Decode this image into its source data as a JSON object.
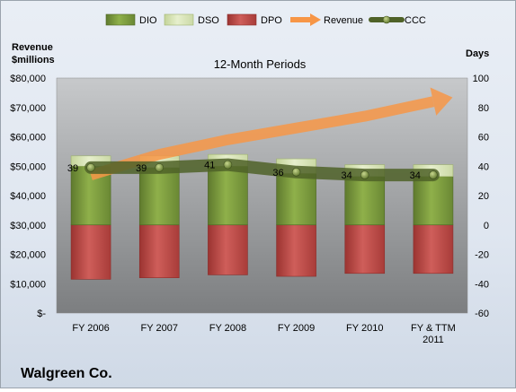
{
  "chart_data": {
    "type": "bar",
    "title": "12-Month Periods",
    "company": "Walgreen Co.",
    "y_left_label": [
      "Revenue",
      "$millions"
    ],
    "y_right_label": "Days",
    "categories": [
      [
        "FY 2006"
      ],
      [
        "FY 2007"
      ],
      [
        "FY 2008"
      ],
      [
        "FY 2009"
      ],
      [
        "FY 2010"
      ],
      [
        "FY & TTM",
        "2011"
      ]
    ],
    "left_axis": {
      "min": 0,
      "max": 80000,
      "step": 10000,
      "ticks": [
        "$-",
        "$10,000",
        "$20,000",
        "$30,000",
        "$40,000",
        "$50,000",
        "$60,000",
        "$70,000",
        "$80,000"
      ]
    },
    "right_axis": {
      "min": -60,
      "max": 100,
      "step": 20,
      "ticks": [
        "-60",
        "-40",
        "-20",
        "0",
        "20",
        "40",
        "60",
        "80",
        "100"
      ]
    },
    "series": [
      {
        "name": "DIO",
        "axis": "right",
        "color": "#77933c",
        "values": [
          40,
          39,
          40,
          35,
          33,
          33
        ]
      },
      {
        "name": "DSO",
        "axis": "right",
        "color": "#d7e4bd",
        "values": [
          7,
          8,
          8,
          10,
          8,
          8
        ]
      },
      {
        "name": "DPO",
        "axis": "right",
        "color": "#c0504d",
        "values": [
          -37,
          -36,
          -34,
          -35,
          -33,
          -33
        ]
      },
      {
        "name": "Revenue",
        "axis": "left",
        "color": "#f79646",
        "values": [
          47000,
          54000,
          59000,
          63000,
          67000,
          72000
        ]
      },
      {
        "name": "CCC",
        "axis": "right",
        "color": "#4f6228",
        "values": [
          39,
          39,
          41,
          36,
          34,
          34
        ]
      }
    ],
    "ccc_labels": [
      "39",
      "39",
      "41",
      "36",
      "34",
      "34"
    ],
    "legend": [
      "DIO",
      "DSO",
      "DPO",
      "Revenue",
      "CCC"
    ],
    "legend_position": "top",
    "grid": false
  }
}
